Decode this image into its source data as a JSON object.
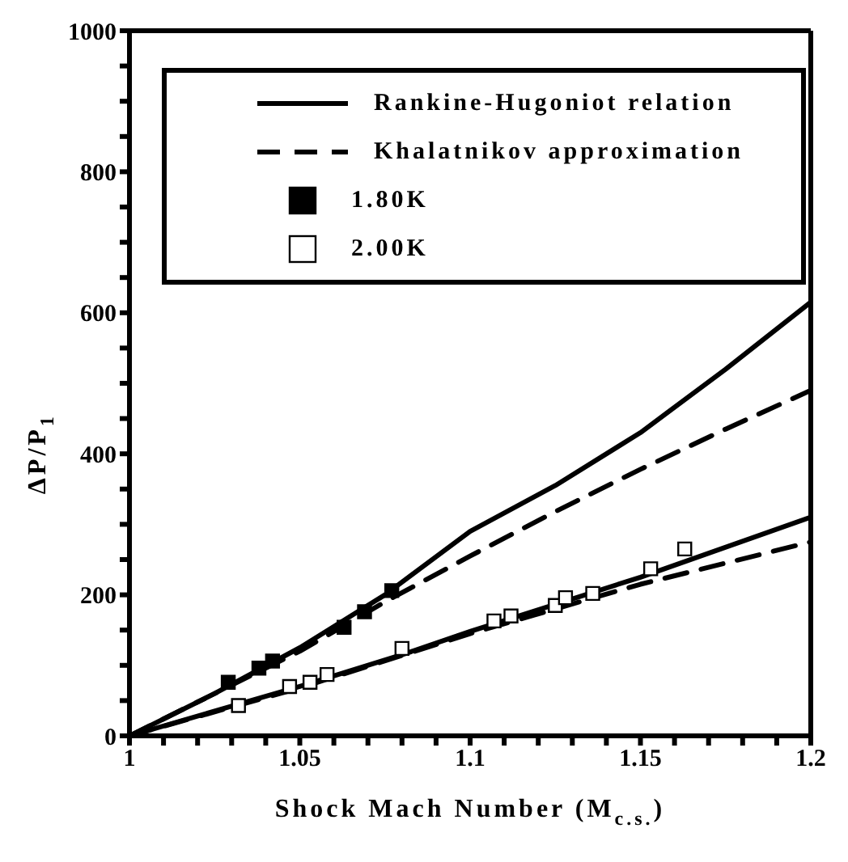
{
  "chart_data": {
    "type": "line",
    "xlabel": "Shock Mach Number (M$_{c.s.}$)",
    "ylabel": "ΔP/P$_{1}$",
    "xlim": [
      1,
      1.2
    ],
    "xticks": [
      1,
      {
        "value": 1.01,
        "label": null
      },
      {
        "value": 1.02,
        "label": null
      },
      {
        "value": 1.03,
        "label": null
      },
      {
        "value": 1.04,
        "label": null
      },
      1.05,
      {
        "value": 1.06,
        "label": null
      },
      {
        "value": 1.07,
        "label": null
      },
      {
        "value": 1.08,
        "label": null
      },
      {
        "value": 1.09,
        "label": null
      },
      1.1,
      {
        "value": 1.11,
        "label": null
      },
      {
        "value": 1.12,
        "label": null
      },
      {
        "value": 1.13,
        "label": null
      },
      {
        "value": 1.14,
        "label": null
      },
      1.15,
      {
        "value": 1.16,
        "label": null
      },
      {
        "value": 1.17,
        "label": null
      },
      {
        "value": 1.18,
        "label": null
      },
      {
        "value": 1.19,
        "label": null
      },
      1.2
    ],
    "ylim": [
      0,
      1000
    ],
    "yticks": [
      0,
      {
        "value": 50,
        "label": null
      },
      {
        "value": 100,
        "label": null
      },
      {
        "value": 150,
        "label": null
      },
      200,
      {
        "value": 250,
        "label": null
      },
      {
        "value": 300,
        "label": null
      },
      {
        "value": 350,
        "label": null
      },
      400,
      {
        "value": 450,
        "label": null
      },
      {
        "value": 500,
        "label": null
      },
      {
        "value": 550,
        "label": null
      },
      600,
      {
        "value": 650,
        "label": null
      },
      {
        "value": 700,
        "label": null
      },
      {
        "value": 750,
        "label": null
      },
      800,
      {
        "value": 850,
        "label": null
      },
      {
        "value": 900,
        "label": null
      },
      {
        "value": 950,
        "label": null
      },
      1000
    ],
    "grid": false,
    "legend": "top",
    "series": [
      {
        "name": "Rankine-Hugoniot relation",
        "line_style": "solid",
        "color": "#000000",
        "x": [
          1,
          1.025,
          1.05,
          1.075,
          1.1,
          1.125,
          1.15,
          1.175,
          1.2
        ],
        "values": [
          0,
          60,
          125,
          200,
          290,
          355,
          430,
          520,
          615
        ]
      },
      {
        "line_style": "solid",
        "color": "#000000",
        "x": [
          1,
          1.05,
          1.08,
          1.1,
          1.15,
          1.2
        ],
        "values": [
          0,
          70,
          115,
          148,
          225,
          310
        ]
      },
      {
        "name": "Khalatnikov approximation",
        "line_style": "dashed",
        "color": "#000000",
        "x": [
          1,
          1.05,
          1.075,
          1.1,
          1.125,
          1.15,
          1.175,
          1.2
        ],
        "values": [
          0,
          120,
          190,
          255,
          318,
          378,
          435,
          490
        ]
      },
      {
        "line_style": "dashed",
        "color": "#000000",
        "x": [
          1,
          1.05,
          1.1,
          1.15,
          1.2
        ],
        "values": [
          0,
          68,
          145,
          215,
          275
        ]
      },
      {
        "name": "1.80K",
        "type": "scatter",
        "marker": "square",
        "color": "#000000",
        "x": [
          1.029,
          1.038,
          1.042,
          1.063,
          1.069,
          1.077
        ],
        "values": [
          76,
          96,
          106,
          154,
          176,
          206
        ]
      },
      {
        "name": "2.00K",
        "type": "scatter",
        "marker": "square",
        "color": "#ffffff",
        "x": [
          1.032,
          1.047,
          1.053,
          1.058,
          1.08,
          1.107,
          1.112,
          1.125,
          1.128,
          1.136,
          1.153,
          1.163
        ],
        "values": [
          43,
          70,
          76,
          87,
          124,
          163,
          170,
          185,
          196,
          202,
          237,
          265
        ]
      }
    ]
  }
}
